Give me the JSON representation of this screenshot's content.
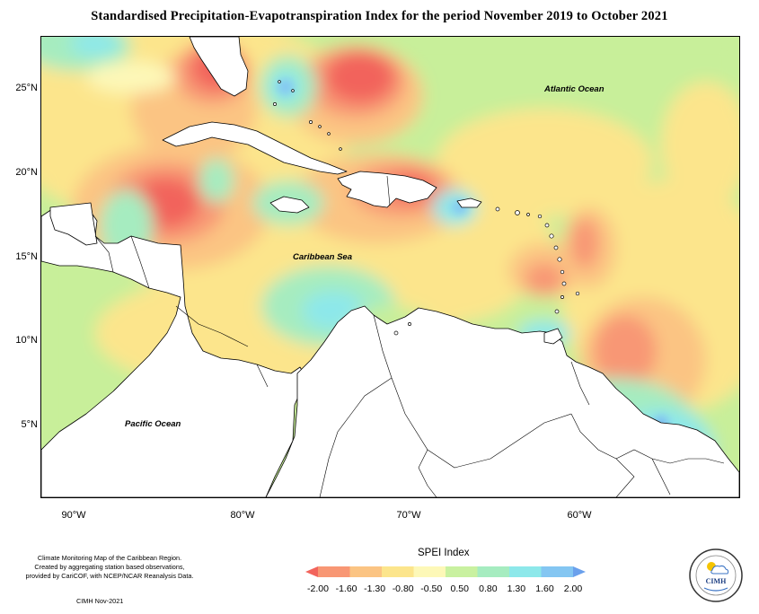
{
  "title": "Standardised Precipitation-Evapotranspiration Index for the period November 2019 to October 2021",
  "map": {
    "latitude_labels": [
      "25°N",
      "20°N",
      "15°N",
      "10°N",
      "5°N"
    ],
    "longitude_labels": [
      "90°W",
      "80°W",
      "70°W",
      "60°W"
    ],
    "ocean_labels": {
      "atlantic": "Atlantic Ocean",
      "caribbean": "Caribbean Sea",
      "pacific": "Pacific Ocean"
    },
    "land_color": "#ffffff",
    "border_color": "#000000"
  },
  "legend": {
    "title": "SPEI Index",
    "ticks": [
      "-2.00",
      "-1.60",
      "-1.30",
      "-0.80",
      "-0.50",
      "0.50",
      "0.80",
      "1.30",
      "1.60",
      "2.00"
    ],
    "colors": [
      "#f2645c",
      "#f89774",
      "#fbc483",
      "#fce58c",
      "#fdf8b8",
      "#c9f1a0",
      "#a6ecc0",
      "#8de8ea",
      "#84c6f2",
      "#6aa0ec"
    ]
  },
  "notes": {
    "line1": "Climate Monitoring Map of the Caribbean Region.",
    "line2": "Created by aggregating station based observations,",
    "line3": "provided by CariCOF, with NCEP/NCAR Reanalysis Data.",
    "credit": "CIMH Nov-2021"
  },
  "logo": {
    "label": "CIMH"
  }
}
